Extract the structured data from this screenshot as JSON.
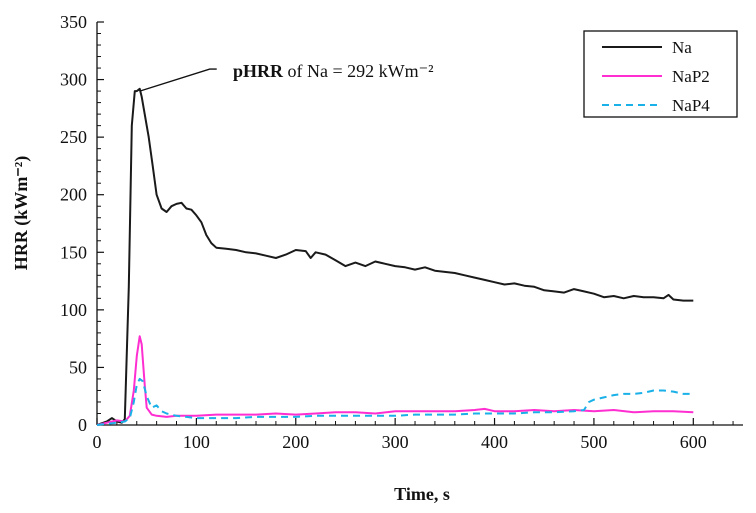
{
  "chart_data": {
    "type": "line",
    "xlabel": "Time, s",
    "ylabel": "HRR (kWm⁻²)",
    "xlim": [
      0,
      650
    ],
    "ylim": [
      0,
      350
    ],
    "xticks": [
      0,
      100,
      200,
      300,
      400,
      500,
      600
    ],
    "yticks": [
      0,
      50,
      100,
      150,
      200,
      250,
      300,
      350
    ],
    "grid": false,
    "legend_position": "top-right",
    "annotation": {
      "bold": "pHRR",
      "text": " of Na = 292 kWm⁻²",
      "point": [
        43,
        290
      ]
    },
    "series": [
      {
        "name": "Na",
        "color": "#1a1a1a",
        "dash": "solid",
        "x": [
          0,
          10,
          15,
          20,
          25,
          28,
          32,
          35,
          38,
          40,
          43,
          45,
          48,
          52,
          56,
          60,
          65,
          70,
          75,
          80,
          85,
          90,
          95,
          100,
          105,
          110,
          115,
          120,
          130,
          140,
          150,
          160,
          170,
          180,
          190,
          200,
          210,
          215,
          220,
          230,
          240,
          250,
          260,
          270,
          280,
          290,
          300,
          310,
          320,
          330,
          340,
          350,
          360,
          370,
          380,
          390,
          400,
          410,
          420,
          430,
          440,
          450,
          460,
          470,
          480,
          490,
          500,
          510,
          520,
          530,
          540,
          550,
          560,
          570,
          575,
          580,
          590,
          600
        ],
        "y": [
          0,
          3,
          6,
          3,
          2,
          5,
          120,
          260,
          290,
          290,
          292,
          285,
          270,
          250,
          225,
          200,
          188,
          185,
          190,
          192,
          193,
          188,
          187,
          182,
          176,
          165,
          158,
          154,
          153,
          152,
          150,
          149,
          147,
          145,
          148,
          152,
          151,
          145,
          150,
          148,
          143,
          138,
          141,
          138,
          142,
          140,
          138,
          137,
          135,
          137,
          134,
          133,
          132,
          130,
          128,
          126,
          124,
          122,
          123,
          121,
          120,
          117,
          116,
          115,
          118,
          116,
          114,
          111,
          112,
          110,
          112,
          111,
          111,
          110,
          113,
          109,
          108,
          108
        ]
      },
      {
        "name": "NaP2",
        "color": "#ff2ed1",
        "dash": "solid",
        "x": [
          0,
          10,
          20,
          28,
          33,
          37,
          40,
          43,
          45,
          48,
          50,
          55,
          60,
          70,
          80,
          90,
          100,
          120,
          140,
          160,
          180,
          200,
          220,
          240,
          260,
          280,
          300,
          320,
          340,
          360,
          380,
          390,
          400,
          420,
          440,
          460,
          480,
          500,
          520,
          540,
          560,
          580,
          600
        ],
        "y": [
          0,
          2,
          4,
          3,
          8,
          30,
          60,
          77,
          70,
          35,
          15,
          9,
          8,
          7,
          8,
          8,
          8,
          9,
          9,
          9,
          10,
          9,
          10,
          11,
          11,
          10,
          12,
          12,
          12,
          12,
          13,
          14,
          12,
          12,
          13,
          12,
          13,
          12,
          13,
          11,
          12,
          12,
          11
        ]
      },
      {
        "name": "NaP4",
        "color": "#1ab0e8",
        "dash": "7,5",
        "x": [
          0,
          10,
          20,
          28,
          33,
          37,
          40,
          43,
          46,
          50,
          55,
          60,
          65,
          70,
          80,
          90,
          100,
          120,
          140,
          160,
          180,
          200,
          220,
          240,
          260,
          280,
          300,
          320,
          340,
          360,
          380,
          400,
          420,
          440,
          460,
          480,
          490,
          495,
          500,
          510,
          520,
          530,
          540,
          550,
          560,
          570,
          580,
          590,
          600
        ],
        "y": [
          0,
          1,
          2,
          3,
          6,
          20,
          35,
          40,
          38,
          25,
          15,
          17,
          12,
          10,
          8,
          7,
          6,
          6,
          6,
          7,
          7,
          7,
          8,
          8,
          8,
          8,
          8,
          9,
          9,
          9,
          10,
          10,
          10,
          11,
          11,
          12,
          13,
          20,
          22,
          24,
          26,
          27,
          27,
          28,
          30,
          30,
          29,
          27,
          27
        ]
      }
    ]
  }
}
